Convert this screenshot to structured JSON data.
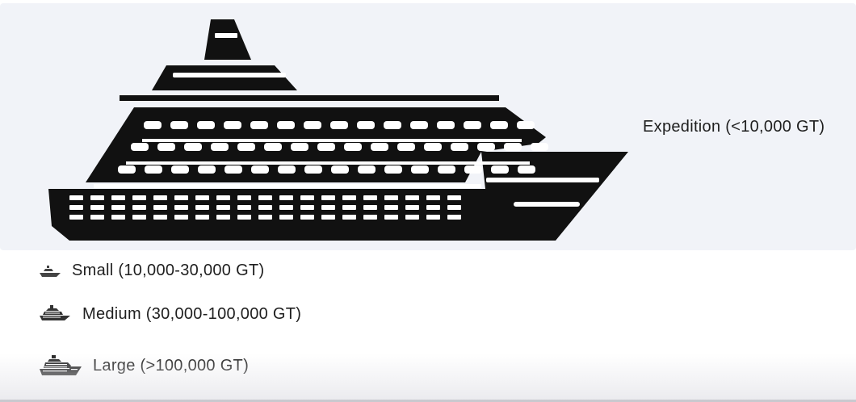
{
  "options": {
    "expedition": {
      "label": "Expedition (<10,000 GT)",
      "icon": "cruise-ship-icon"
    },
    "small": {
      "label": "Small (10,000-30,000 GT)",
      "icon": "small-ship-icon"
    },
    "medium": {
      "label": "Medium (30,000-100,000 GT)",
      "icon": "medium-ship-icon"
    },
    "large": {
      "label": "Large (>100,000 GT)",
      "icon": "large-ship-icon"
    }
  },
  "colors": {
    "selected_background": "#f1f3f8",
    "icon": "#111111",
    "text": "#1f1f1f"
  }
}
